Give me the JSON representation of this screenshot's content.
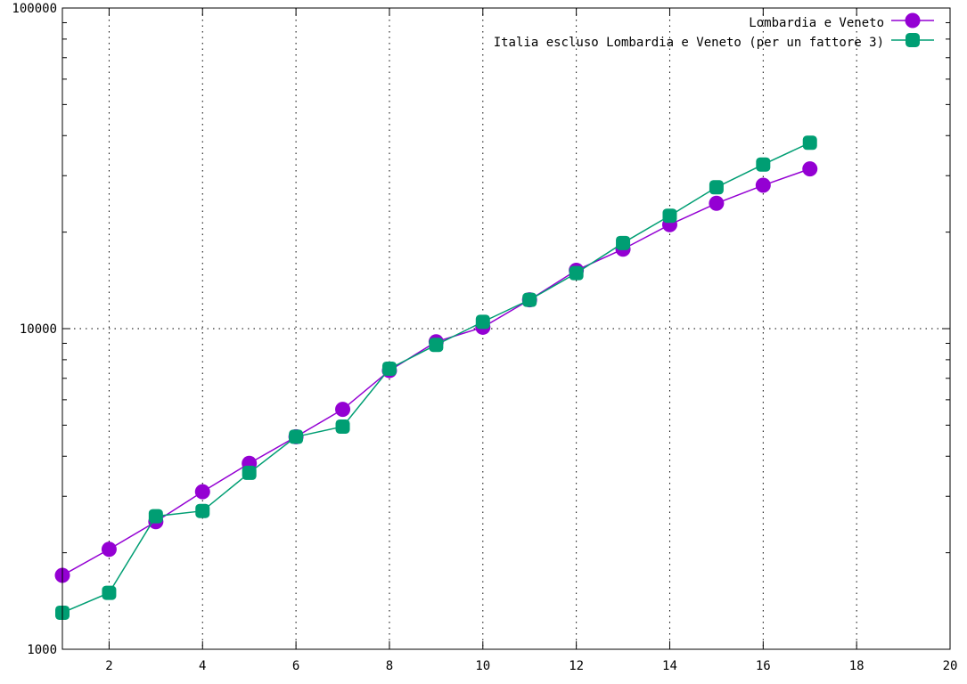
{
  "chart_data": {
    "type": "line",
    "title": "",
    "xlabel": "",
    "ylabel": "",
    "xlim": [
      1,
      20
    ],
    "ylim": [
      1000,
      100000
    ],
    "yscale": "log",
    "grid": true,
    "legend_position": "top-right",
    "x_ticks": [
      2,
      4,
      6,
      8,
      10,
      12,
      14,
      16,
      18,
      20
    ],
    "x_tick_labels": [
      "2",
      "4",
      "6",
      "8",
      "10",
      "12",
      "14",
      "16",
      "18",
      "20"
    ],
    "y_ticks": [
      1000,
      10000,
      100000
    ],
    "y_tick_labels": [
      "1000",
      "10000",
      "100000"
    ],
    "x": [
      1,
      2,
      3,
      4,
      5,
      6,
      7,
      8,
      9,
      10,
      11,
      12,
      13,
      14,
      15,
      16,
      17
    ],
    "series": [
      {
        "name": "Lombardia e Veneto",
        "color": "#9400d3",
        "values": [
          1700,
          2050,
          2500,
          3100,
          3800,
          4600,
          5600,
          7400,
          9100,
          10100,
          12300,
          15200,
          17700,
          21100,
          24600,
          28000,
          31500
        ]
      },
      {
        "name": "Italia escluso Lombardia e Veneto (per un fattore 3)",
        "color": "#009e73",
        "values": [
          1300,
          1500,
          2600,
          2700,
          3550,
          4600,
          4950,
          7500,
          8900,
          10500,
          12300,
          14900,
          18500,
          22500,
          27600,
          32500,
          38000
        ]
      }
    ]
  }
}
